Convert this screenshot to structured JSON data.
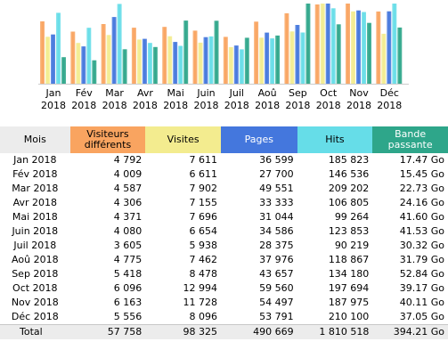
{
  "chart_data": {
    "type": "bar",
    "categories": [
      [
        "Jan",
        "2018"
      ],
      [
        "Fév",
        "2018"
      ],
      [
        "Mar",
        "2018"
      ],
      [
        "Avr",
        "2018"
      ],
      [
        "Mai",
        "2018"
      ],
      [
        "Juin",
        "2018"
      ],
      [
        "Juil",
        "2018"
      ],
      [
        "Aoû",
        "2018"
      ],
      [
        "Sep",
        "2018"
      ],
      [
        "Oct",
        "2018"
      ],
      [
        "Nov",
        "2018"
      ],
      [
        "Déc",
        "2018"
      ]
    ],
    "series": [
      {
        "name": "Visiteurs différents",
        "color": "#f9a460",
        "values": [
          4792,
          4009,
          4587,
          4306,
          4371,
          4080,
          3605,
          4775,
          5418,
          6096,
          6163,
          5556
        ]
      },
      {
        "name": "Visites",
        "color": "#f3ec8f",
        "values": [
          7611,
          6611,
          7902,
          7155,
          7696,
          6654,
          5938,
          7462,
          8478,
          12994,
          11728,
          8096
        ]
      },
      {
        "name": "Pages",
        "color": "#4477dd",
        "values": [
          36599,
          27700,
          49551,
          33333,
          31044,
          34586,
          28375,
          37976,
          43657,
          59560,
          54497,
          53791
        ]
      },
      {
        "name": "Hits",
        "color": "#66dde8",
        "values": [
          185823,
          146536,
          209202,
          106805,
          99264,
          123853,
          90219,
          118867,
          134180,
          197694,
          187975,
          210100
        ]
      },
      {
        "name": "Bande passante",
        "color": "#2ea68a",
        "values": [
          17.47,
          15.45,
          22.73,
          24.16,
          41.6,
          41.53,
          30.32,
          31.79,
          52.84,
          39.17,
          40.11,
          37.05
        ]
      }
    ]
  },
  "table": {
    "headers": {
      "month": "Mois",
      "visitors": [
        "Visiteurs",
        "différents"
      ],
      "visits": "Visites",
      "pages": "Pages",
      "hits": "Hits",
      "bandwidth": [
        "Bande",
        "passante"
      ]
    },
    "rows": [
      {
        "month": "Jan 2018",
        "visitors": "4 792",
        "visits": "7 611",
        "pages": "36 599",
        "hits": "185 823",
        "bandwidth": "17.47 Go"
      },
      {
        "month": "Fév 2018",
        "visitors": "4 009",
        "visits": "6 611",
        "pages": "27 700",
        "hits": "146 536",
        "bandwidth": "15.45 Go"
      },
      {
        "month": "Mar 2018",
        "visitors": "4 587",
        "visits": "7 902",
        "pages": "49 551",
        "hits": "209 202",
        "bandwidth": "22.73 Go"
      },
      {
        "month": "Avr 2018",
        "visitors": "4 306",
        "visits": "7 155",
        "pages": "33 333",
        "hits": "106 805",
        "bandwidth": "24.16 Go"
      },
      {
        "month": "Mai 2018",
        "visitors": "4 371",
        "visits": "7 696",
        "pages": "31 044",
        "hits": "99 264",
        "bandwidth": "41.60 Go"
      },
      {
        "month": "Juin 2018",
        "visitors": "4 080",
        "visits": "6 654",
        "pages": "34 586",
        "hits": "123 853",
        "bandwidth": "41.53 Go"
      },
      {
        "month": "Juil 2018",
        "visitors": "3 605",
        "visits": "5 938",
        "pages": "28 375",
        "hits": "90 219",
        "bandwidth": "30.32 Go"
      },
      {
        "month": "Aoû 2018",
        "visitors": "4 775",
        "visits": "7 462",
        "pages": "37 976",
        "hits": "118 867",
        "bandwidth": "31.79 Go"
      },
      {
        "month": "Sep 2018",
        "visitors": "5 418",
        "visits": "8 478",
        "pages": "43 657",
        "hits": "134 180",
        "bandwidth": "52.84 Go"
      },
      {
        "month": "Oct 2018",
        "visitors": "6 096",
        "visits": "12 994",
        "pages": "59 560",
        "hits": "197 694",
        "bandwidth": "39.17 Go"
      },
      {
        "month": "Nov 2018",
        "visitors": "6 163",
        "visits": "11 728",
        "pages": "54 497",
        "hits": "187 975",
        "bandwidth": "40.11 Go"
      },
      {
        "month": "Déc 2018",
        "visitors": "5 556",
        "visits": "8 096",
        "pages": "53 791",
        "hits": "210 100",
        "bandwidth": "37.05 Go"
      }
    ],
    "total": {
      "month": "Total",
      "visitors": "57 758",
      "visits": "98 325",
      "pages": "490 669",
      "hits": "1 810 518",
      "bandwidth": "394.21 Go"
    }
  }
}
